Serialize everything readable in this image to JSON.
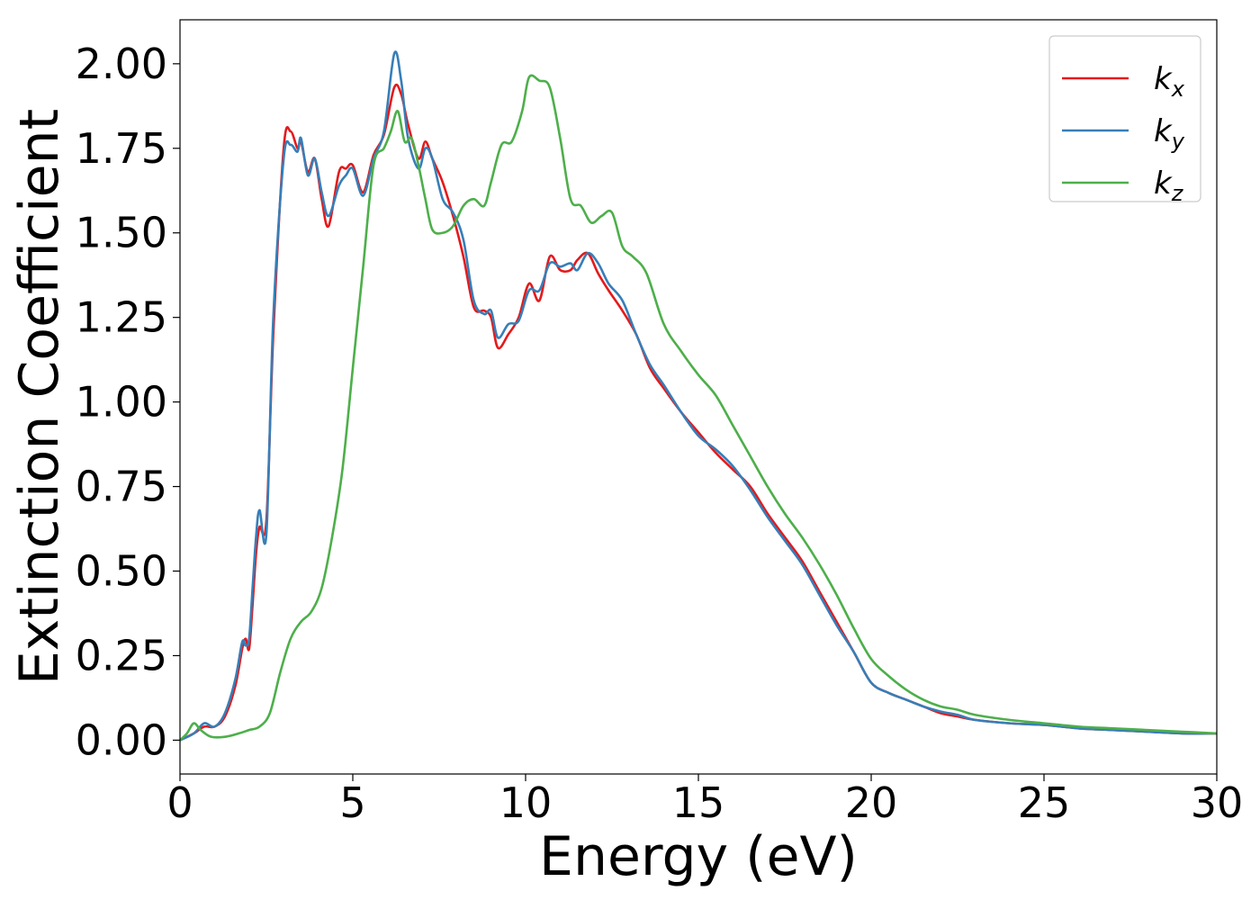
{
  "chart_data": {
    "type": "line",
    "xlabel": "Energy (eV)",
    "ylabel": "Extinction Coefficient",
    "xlim": [
      0,
      30
    ],
    "ylim": [
      -0.1,
      2.13
    ],
    "x_ticks": [
      0,
      5,
      10,
      15,
      20,
      25,
      30
    ],
    "x_tick_labels": [
      "0",
      "5",
      "10",
      "15",
      "20",
      "25",
      "30"
    ],
    "y_ticks": [
      0,
      0.25,
      0.5,
      0.75,
      1.0,
      1.25,
      1.5,
      1.75,
      2.0
    ],
    "y_tick_labels": [
      "0.00",
      "0.25",
      "0.50",
      "0.75",
      "1.00",
      "1.25",
      "1.50",
      "1.75",
      "2.00"
    ],
    "grid": false,
    "legend_position": "top-right",
    "series": [
      {
        "name": "k_x",
        "label_base": "k",
        "label_sub": "x",
        "color": "#e41a1c",
        "x": [
          0,
          0.4,
          0.7,
          1.0,
          1.3,
          1.6,
          1.8,
          1.9,
          2.0,
          2.1,
          2.2,
          2.3,
          2.5,
          2.7,
          3.0,
          3.2,
          3.4,
          3.5,
          3.7,
          3.9,
          4.1,
          4.3,
          4.6,
          4.8,
          5.0,
          5.3,
          5.6,
          5.9,
          6.2,
          6.4,
          6.6,
          6.9,
          7.1,
          7.3,
          7.6,
          7.9,
          8.2,
          8.5,
          8.8,
          9.0,
          9.2,
          9.5,
          9.8,
          10.1,
          10.4,
          10.7,
          11.0,
          11.3,
          11.5,
          11.8,
          12.1,
          12.4,
          12.8,
          13.2,
          13.6,
          14.0,
          14.5,
          15.0,
          15.5,
          16.0,
          16.5,
          17.0,
          17.5,
          18.0,
          18.5,
          19.0,
          19.5,
          20.0,
          20.5,
          21.0,
          21.5,
          22.0,
          22.5,
          23.0,
          24.0,
          25.0,
          26.0,
          27.0,
          28.0,
          29.0,
          30.0
        ],
        "y": [
          0.0,
          0.02,
          0.04,
          0.04,
          0.07,
          0.16,
          0.27,
          0.3,
          0.27,
          0.4,
          0.55,
          0.63,
          0.65,
          1.2,
          1.75,
          1.8,
          1.75,
          1.77,
          1.68,
          1.72,
          1.6,
          1.52,
          1.68,
          1.69,
          1.7,
          1.62,
          1.73,
          1.79,
          1.93,
          1.91,
          1.82,
          1.72,
          1.77,
          1.72,
          1.65,
          1.55,
          1.43,
          1.28,
          1.27,
          1.25,
          1.16,
          1.2,
          1.25,
          1.35,
          1.3,
          1.43,
          1.39,
          1.39,
          1.42,
          1.44,
          1.38,
          1.33,
          1.27,
          1.2,
          1.1,
          1.04,
          0.97,
          0.91,
          0.85,
          0.8,
          0.75,
          0.67,
          0.6,
          0.53,
          0.44,
          0.35,
          0.26,
          0.17,
          0.14,
          0.12,
          0.1,
          0.08,
          0.07,
          0.06,
          0.05,
          0.045,
          0.035,
          0.03,
          0.025,
          0.02,
          0.02
        ]
      },
      {
        "name": "k_y",
        "label_base": "k",
        "label_sub": "y",
        "color": "#377eb8",
        "x": [
          0,
          0.4,
          0.7,
          1.0,
          1.3,
          1.6,
          1.8,
          1.9,
          2.0,
          2.1,
          2.2,
          2.3,
          2.5,
          2.7,
          3.0,
          3.2,
          3.4,
          3.5,
          3.7,
          3.9,
          4.1,
          4.3,
          4.6,
          4.8,
          5.0,
          5.3,
          5.6,
          5.9,
          6.2,
          6.4,
          6.6,
          6.9,
          7.1,
          7.3,
          7.6,
          7.9,
          8.2,
          8.5,
          8.8,
          9.0,
          9.2,
          9.5,
          9.8,
          10.1,
          10.4,
          10.7,
          11.0,
          11.3,
          11.5,
          11.8,
          12.1,
          12.4,
          12.8,
          13.2,
          13.6,
          14.0,
          14.5,
          15.0,
          15.5,
          16.0,
          16.5,
          17.0,
          17.5,
          18.0,
          18.5,
          19.0,
          19.5,
          20.0,
          20.5,
          21.0,
          21.5,
          22.0,
          22.5,
          23.0,
          24.0,
          25.0,
          26.0,
          27.0,
          28.0,
          29.0,
          30.0
        ],
        "y": [
          0.0,
          0.02,
          0.05,
          0.04,
          0.08,
          0.18,
          0.29,
          0.28,
          0.3,
          0.45,
          0.6,
          0.68,
          0.61,
          1.25,
          1.72,
          1.76,
          1.74,
          1.78,
          1.67,
          1.72,
          1.62,
          1.55,
          1.64,
          1.67,
          1.69,
          1.61,
          1.72,
          1.8,
          2.03,
          1.95,
          1.78,
          1.69,
          1.75,
          1.72,
          1.6,
          1.56,
          1.48,
          1.3,
          1.26,
          1.27,
          1.19,
          1.23,
          1.24,
          1.33,
          1.33,
          1.41,
          1.4,
          1.41,
          1.39,
          1.44,
          1.41,
          1.35,
          1.3,
          1.2,
          1.11,
          1.05,
          0.97,
          0.9,
          0.86,
          0.81,
          0.74,
          0.66,
          0.59,
          0.52,
          0.43,
          0.34,
          0.26,
          0.17,
          0.14,
          0.12,
          0.1,
          0.085,
          0.075,
          0.06,
          0.05,
          0.045,
          0.035,
          0.03,
          0.025,
          0.02,
          0.02
        ]
      },
      {
        "name": "k_z",
        "label_base": "k",
        "label_sub": "z",
        "color": "#4daf4a",
        "x": [
          0,
          0.2,
          0.4,
          0.6,
          0.9,
          1.3,
          1.7,
          2.0,
          2.3,
          2.6,
          2.9,
          3.2,
          3.5,
          3.8,
          4.1,
          4.4,
          4.7,
          5.0,
          5.3,
          5.6,
          5.9,
          6.1,
          6.3,
          6.5,
          6.7,
          6.9,
          7.1,
          7.3,
          7.6,
          7.9,
          8.2,
          8.5,
          8.8,
          9.0,
          9.3,
          9.6,
          9.9,
          10.1,
          10.4,
          10.7,
          11.0,
          11.3,
          11.6,
          11.9,
          12.2,
          12.5,
          12.8,
          13.1,
          13.5,
          14.0,
          14.5,
          15.0,
          15.5,
          16.0,
          16.5,
          17.0,
          17.5,
          18.0,
          18.5,
          19.0,
          19.5,
          20.0,
          20.5,
          21.0,
          21.5,
          22.0,
          22.5,
          23.0,
          24.0,
          25.0,
          26.0,
          27.0,
          28.0,
          29.0,
          30.0
        ],
        "y": [
          0.0,
          0.02,
          0.05,
          0.03,
          0.01,
          0.01,
          0.02,
          0.03,
          0.04,
          0.08,
          0.2,
          0.3,
          0.35,
          0.38,
          0.45,
          0.6,
          0.8,
          1.1,
          1.4,
          1.7,
          1.75,
          1.8,
          1.86,
          1.77,
          1.78,
          1.7,
          1.6,
          1.51,
          1.5,
          1.52,
          1.58,
          1.6,
          1.58,
          1.65,
          1.76,
          1.77,
          1.86,
          1.96,
          1.95,
          1.93,
          1.78,
          1.6,
          1.58,
          1.53,
          1.55,
          1.56,
          1.46,
          1.43,
          1.38,
          1.23,
          1.15,
          1.08,
          1.02,
          0.93,
          0.84,
          0.75,
          0.67,
          0.6,
          0.52,
          0.43,
          0.33,
          0.24,
          0.19,
          0.15,
          0.12,
          0.1,
          0.09,
          0.075,
          0.06,
          0.05,
          0.04,
          0.035,
          0.03,
          0.025,
          0.02
        ]
      }
    ]
  }
}
